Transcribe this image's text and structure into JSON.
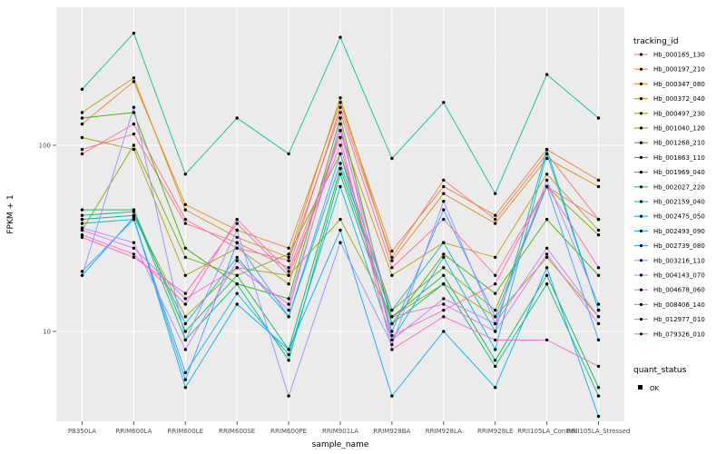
{
  "figure": {
    "background": "#ffffff",
    "panel_fill": "#EBEBEB",
    "grid_major_color": "#FFFFFF",
    "grid_minor_color": "#F5F5F5",
    "point_color": "#000000"
  },
  "axes": {
    "x_title": "sample_name",
    "y_title": "FPKM + 1",
    "y_tick_labels": [
      "10",
      "100"
    ],
    "y_tick_values": [
      10,
      100
    ],
    "y_minor_values": [
      3.162,
      31.62,
      316.2
    ]
  },
  "legend": {
    "tracking_title": "tracking_id",
    "quant_title": "quant_status",
    "quant_label": "OK"
  },
  "chart_data": {
    "type": "line",
    "title": "",
    "xlabel": "sample_name",
    "ylabel": "FPKM + 1",
    "y_scale": "log10",
    "ylim": [
      3.2,
      550
    ],
    "grid": true,
    "legend_position": "right",
    "categories": [
      "PB350LA",
      "RRIM600LA",
      "RRIM600LE",
      "RRIM600SE",
      "RRIM600PE",
      "RRIM901LA",
      "RRIM928BA",
      "RRIM928LA",
      "RRIM928LE",
      "RRII105LA_Control",
      "RRII105LA_Stressed"
    ],
    "point_marker": "OK",
    "series": [
      {
        "name": "Hb_000165_130",
        "color": "#F8766D",
        "values": [
          95,
          115,
          38,
          30,
          22,
          160,
          25,
          65,
          40,
          90,
          40
        ]
      },
      {
        "name": "Hb_000197_210",
        "color": "#EA8331",
        "values": [
          130,
          220,
          48,
          35,
          28,
          170,
          27,
          60,
          42,
          95,
          65
        ]
      },
      {
        "name": "Hb_000347_080",
        "color": "#D89000",
        "values": [
          150,
          230,
          45,
          32,
          25,
          180,
          24,
          55,
          38,
          85,
          60
        ]
      },
      {
        "name": "Hb_000372_040",
        "color": "#C09B00",
        "values": [
          110,
          95,
          20,
          28,
          18,
          120,
          20,
          30,
          25,
          70,
          35
        ]
      },
      {
        "name": "Hb_000497_230",
        "color": "#A3A500",
        "values": [
          40,
          42,
          12,
          22,
          20,
          40,
          12,
          18,
          12,
          25,
          12
        ]
      },
      {
        "name": "Hb_001040_120",
        "color": "#7CAE00",
        "values": [
          35,
          100,
          25,
          20,
          26,
          90,
          13,
          22,
          13,
          60,
          33
        ]
      },
      {
        "name": "Hb_001268_210",
        "color": "#39B600",
        "values": [
          140,
          150,
          28,
          18,
          15,
          140,
          11,
          26,
          16,
          40,
          20
        ]
      },
      {
        "name": "Hb_001863_110",
        "color": "#00BB4E",
        "values": [
          45,
          45,
          10,
          20,
          8,
          75,
          12,
          20,
          7,
          20,
          5
        ]
      },
      {
        "name": "Hb_001969_040",
        "color": "#00BF7D",
        "values": [
          42,
          44,
          9,
          18,
          7,
          70,
          11,
          18,
          6.5,
          18,
          4.5
        ]
      },
      {
        "name": "Hb_002027_220",
        "color": "#00C1A3",
        "values": [
          200,
          400,
          70,
          140,
          90,
          380,
          85,
          170,
          55,
          240,
          140
        ]
      },
      {
        "name": "Hb_002159_040",
        "color": "#00BFC4",
        "values": [
          40,
          42,
          11,
          25,
          12,
          80,
          13,
          30,
          10,
          95,
          13
        ]
      },
      {
        "name": "Hb_002475_050",
        "color": "#00BAE0",
        "values": [
          38,
          40,
          6,
          16,
          7.5,
          60,
          9,
          25,
          8,
          90,
          13
        ]
      },
      {
        "name": "Hb_002493_090",
        "color": "#00B0F6",
        "values": [
          20,
          41,
          5,
          14,
          8,
          35,
          4.5,
          10,
          5,
          22,
          3.5
        ]
      },
      {
        "name": "Hb_002739_080",
        "color": "#35A2FF",
        "values": [
          21,
          40,
          5.5,
          30,
          12,
          90,
          10,
          45,
          12,
          60,
          9
        ]
      },
      {
        "name": "Hb_003216_110",
        "color": "#9590FF",
        "values": [
          20,
          160,
          9,
          35,
          4.5,
          30,
          8.5,
          50,
          11,
          65,
          14
        ]
      },
      {
        "name": "Hb_004143_070",
        "color": "#C77CFF",
        "values": [
          36,
          30,
          8,
          24,
          13,
          130,
          9,
          15,
          11,
          28,
          12
        ]
      },
      {
        "name": "Hb_004678_060",
        "color": "#E76BF3",
        "values": [
          35,
          28,
          15,
          22,
          14,
          120,
          12,
          14,
          10,
          26,
          11
        ]
      },
      {
        "name": "Hb_008406_140",
        "color": "#FF61C9",
        "values": [
          33,
          26,
          14,
          40,
          21,
          110,
          8,
          12,
          9,
          9,
          6.5
        ]
      },
      {
        "name": "Hb_012977_010",
        "color": "#FF62BC",
        "values": [
          32,
          25,
          16,
          38,
          20,
          100,
          9.5,
          13,
          18,
          60,
          22
        ]
      },
      {
        "name": "Hb_079326_010",
        "color": "#FF6A98",
        "values": [
          90,
          130,
          40,
          28,
          24,
          150,
          22,
          40,
          20,
          60,
          40
        ]
      }
    ]
  }
}
